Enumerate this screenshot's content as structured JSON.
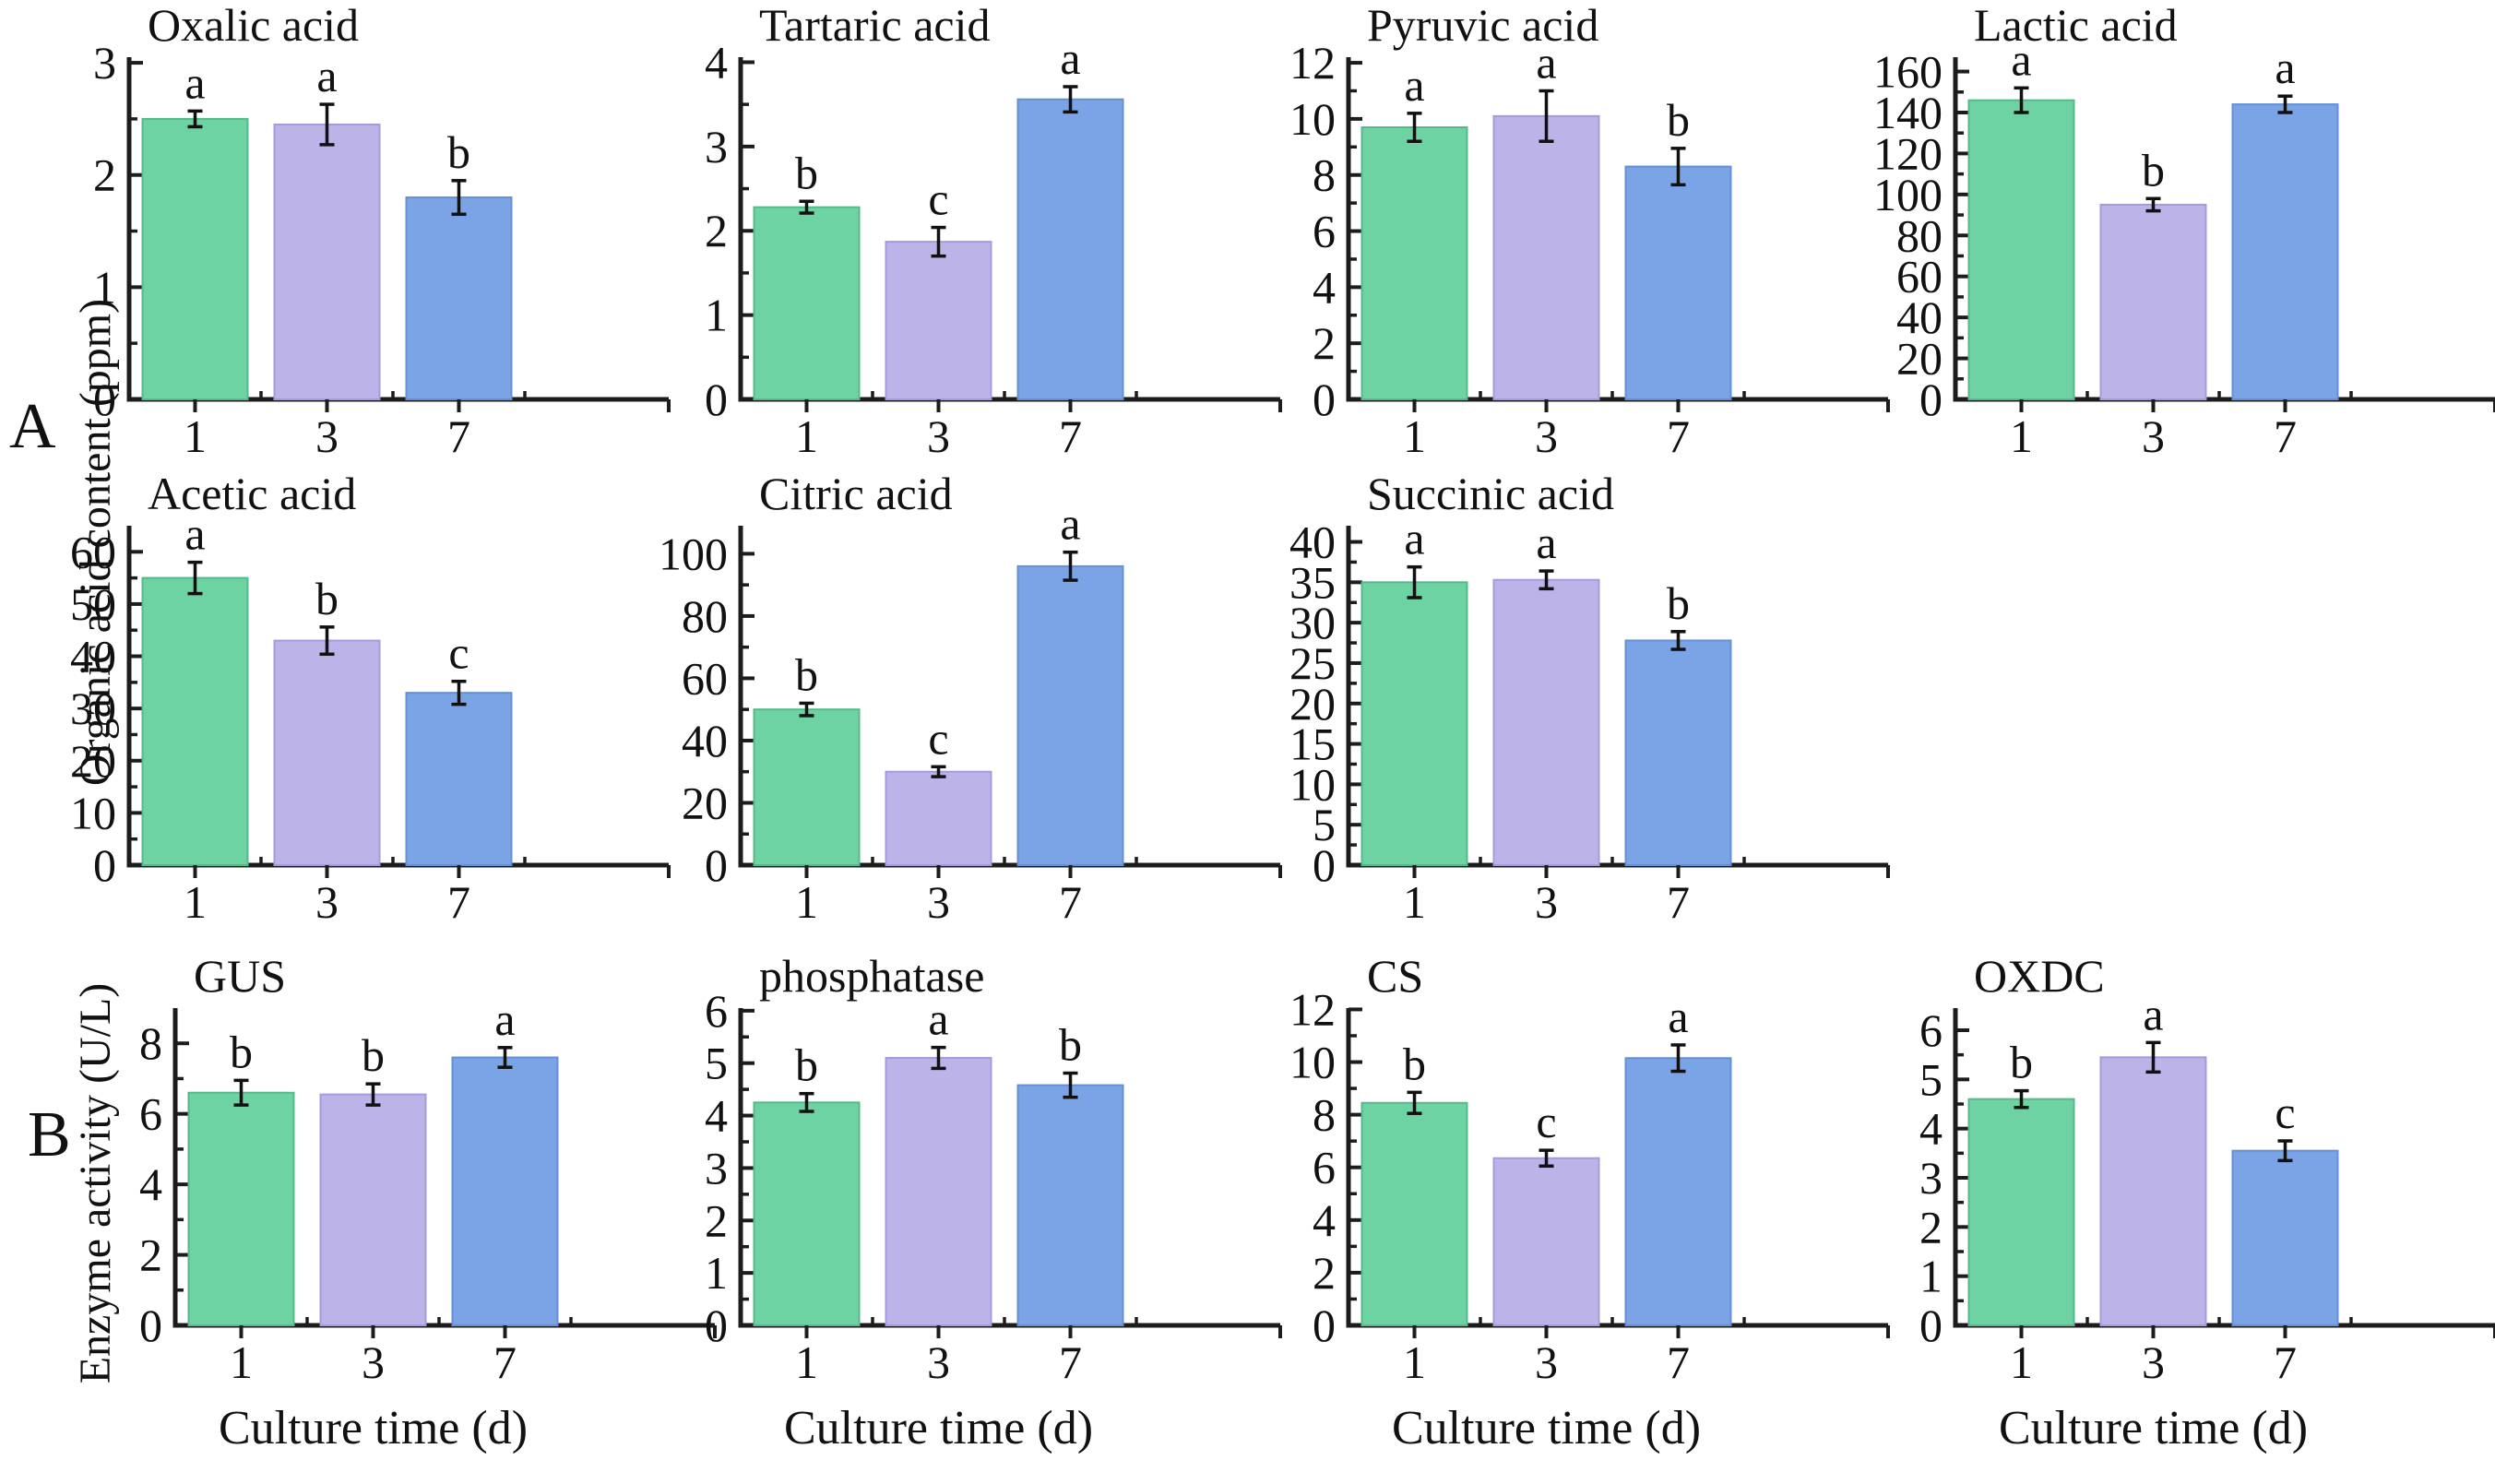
{
  "figure": {
    "panel_a_label": "A",
    "panel_b_label": "B",
    "organic_axis_label": "Organic acid content (ppm)",
    "enzyme_axis_label": "Enzyme activity (U/L)",
    "x_axis_label": "Culture time (d)",
    "categories": [
      "1",
      "3",
      "7"
    ],
    "bar_colors": [
      "#6ed3a3",
      "#bcb4e9",
      "#7ba4e6"
    ],
    "bar_edge_colors": [
      "#55b98b",
      "#a29bdd",
      "#6590d6"
    ],
    "axis_color": "#1c1c1c",
    "text_color": "#111111",
    "error_bar_color": "#111111"
  },
  "chart_data": [
    {
      "type": "bar",
      "panel": "A",
      "title": "Oxalic acid",
      "categories": [
        "1",
        "3",
        "7"
      ],
      "xlabel": "",
      "ylabel": "Organic acid content (ppm)",
      "values": [
        2.5,
        2.45,
        1.8
      ],
      "errors": [
        0.07,
        0.18,
        0.15
      ],
      "sig_letters": [
        "a",
        "a",
        "b"
      ],
      "ylim": [
        0,
        3.05
      ],
      "ytick_max": 3,
      "ytick_step": 1,
      "yminor_step": 0.5,
      "grid": {
        "row": 0,
        "col": 0
      }
    },
    {
      "type": "bar",
      "panel": "A",
      "title": "Tartaric acid",
      "categories": [
        "1",
        "3",
        "7"
      ],
      "xlabel": "",
      "ylabel": "Organic acid content (ppm)",
      "values": [
        2.28,
        1.87,
        3.56
      ],
      "errors": [
        0.07,
        0.17,
        0.15
      ],
      "sig_letters": [
        "b",
        "c",
        "a"
      ],
      "ylim": [
        0,
        4.06
      ],
      "ytick_max": 4,
      "ytick_step": 1,
      "yminor_step": 0.5,
      "grid": {
        "row": 0,
        "col": 1
      }
    },
    {
      "type": "bar",
      "panel": "A",
      "title": "Pyruvic acid",
      "categories": [
        "1",
        "3",
        "7"
      ],
      "xlabel": "",
      "ylabel": "Organic acid content (ppm)",
      "values": [
        9.7,
        10.1,
        8.3
      ],
      "errors": [
        0.5,
        0.9,
        0.65
      ],
      "sig_letters": [
        "a",
        "a",
        "b"
      ],
      "ylim": [
        0,
        12.2
      ],
      "ytick_max": 12,
      "ytick_step": 2,
      "yminor_step": 1,
      "grid": {
        "row": 0,
        "col": 2
      }
    },
    {
      "type": "bar",
      "panel": "A",
      "title": "Lactic acid",
      "categories": [
        "1",
        "3",
        "7"
      ],
      "xlabel": "",
      "ylabel": "Organic acid content (ppm)",
      "values": [
        146,
        95,
        144
      ],
      "errors": [
        6,
        3,
        4
      ],
      "sig_letters": [
        "a",
        "b",
        "a"
      ],
      "ylim": [
        0,
        167
      ],
      "ytick_max": 160,
      "ytick_step": 20,
      "yminor_step": 10,
      "grid": {
        "row": 0,
        "col": 3
      }
    },
    {
      "type": "bar",
      "panel": "A",
      "title": "Acetic acid",
      "categories": [
        "1",
        "3",
        "7"
      ],
      "xlabel": "",
      "ylabel": "Organic acid content (ppm)",
      "values": [
        55,
        43,
        33
      ],
      "errors": [
        3,
        2.6,
        2.2
      ],
      "sig_letters": [
        "a",
        "b",
        "c"
      ],
      "ylim": [
        0,
        65
      ],
      "ytick_max": 60,
      "ytick_step": 10,
      "yminor_step": 5,
      "grid": {
        "row": 1,
        "col": 0
      }
    },
    {
      "type": "bar",
      "panel": "A",
      "title": "Citric acid",
      "categories": [
        "1",
        "3",
        "7"
      ],
      "xlabel": "",
      "ylabel": "Organic acid content (ppm)",
      "values": [
        50,
        30,
        96
      ],
      "errors": [
        2,
        1.6,
        4.5
      ],
      "sig_letters": [
        "b",
        "c",
        "a"
      ],
      "ylim": [
        0,
        109
      ],
      "ytick_max": 100,
      "ytick_step": 20,
      "yminor_step": 10,
      "grid": {
        "row": 1,
        "col": 1
      }
    },
    {
      "type": "bar",
      "panel": "A",
      "title": "Succinic acid",
      "categories": [
        "1",
        "3",
        "7"
      ],
      "xlabel": "",
      "ylabel": "Organic acid content (ppm)",
      "values": [
        35,
        35.3,
        27.8
      ],
      "errors": [
        1.9,
        1.1,
        1.1
      ],
      "sig_letters": [
        "a",
        "a",
        "b"
      ],
      "ylim": [
        0,
        42
      ],
      "ytick_max": 40,
      "ytick_step": 5,
      "yminor_step": 2.5,
      "grid": {
        "row": 1,
        "col": 2
      }
    },
    {
      "type": "bar",
      "panel": "B",
      "title": "GUS",
      "categories": [
        "1",
        "3",
        "7"
      ],
      "xlabel": "Culture time (d)",
      "ylabel": "Enzyme activity (U/L)",
      "values": [
        6.6,
        6.55,
        7.6
      ],
      "errors": [
        0.35,
        0.3,
        0.28
      ],
      "sig_letters": [
        "b",
        "b",
        "a"
      ],
      "ylim": [
        0,
        9.0
      ],
      "ytick_max": 8,
      "ytick_step": 2,
      "yminor_step": 1,
      "grid": {
        "row": 2,
        "col": 0
      }
    },
    {
      "type": "bar",
      "panel": "B",
      "title": "phosphatase",
      "categories": [
        "1",
        "3",
        "7"
      ],
      "xlabel": "Culture time (d)",
      "ylabel": "Enzyme activity (U/L)",
      "values": [
        4.25,
        5.1,
        4.58
      ],
      "errors": [
        0.17,
        0.2,
        0.23
      ],
      "sig_letters": [
        "b",
        "a",
        "b"
      ],
      "ylim": [
        0,
        6.05
      ],
      "ytick_max": 6,
      "ytick_step": 1,
      "yminor_step": 0.5,
      "grid": {
        "row": 2,
        "col": 1
      }
    },
    {
      "type": "bar",
      "panel": "B",
      "title": "CS",
      "categories": [
        "1",
        "3",
        "7"
      ],
      "xlabel": "Culture time (d)",
      "ylabel": "Enzyme activity (U/L)",
      "values": [
        8.45,
        6.35,
        10.15
      ],
      "errors": [
        0.4,
        0.3,
        0.5
      ],
      "sig_letters": [
        "b",
        "c",
        "a"
      ],
      "ylim": [
        0,
        12.05
      ],
      "ytick_max": 12,
      "ytick_step": 2,
      "yminor_step": 1,
      "grid": {
        "row": 2,
        "col": 2
      }
    },
    {
      "type": "bar",
      "panel": "B",
      "title": "OXDC",
      "categories": [
        "1",
        "3",
        "7"
      ],
      "xlabel": "Culture time (d)",
      "ylabel": "Enzyme activity (U/L)",
      "values": [
        4.6,
        5.45,
        3.55
      ],
      "errors": [
        0.17,
        0.3,
        0.2
      ],
      "sig_letters": [
        "b",
        "a",
        "c"
      ],
      "ylim": [
        0,
        6.45
      ],
      "ytick_max": 6,
      "ytick_step": 1,
      "yminor_step": 0.5,
      "grid": {
        "row": 2,
        "col": 3
      }
    }
  ]
}
